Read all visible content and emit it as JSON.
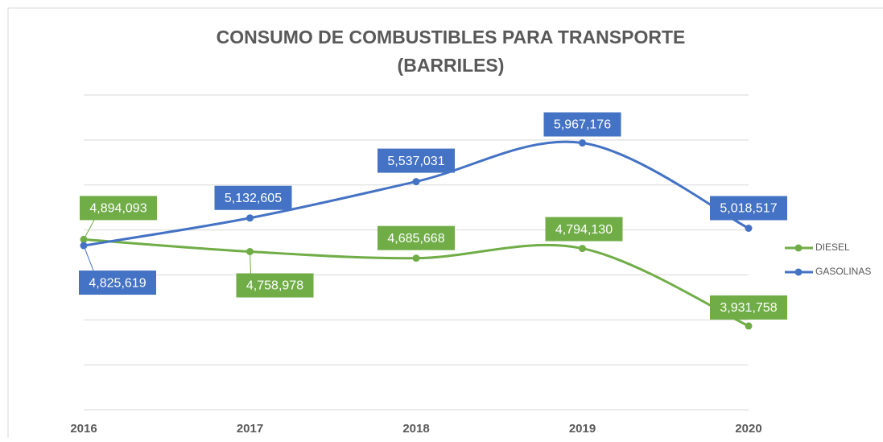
{
  "chart_data": {
    "type": "line",
    "title": "CONSUMO DE COMBUSTIBLES PARA TRANSPORTE",
    "subtitle": "(BARRILES)",
    "categories": [
      "2016",
      "2017",
      "2018",
      "2019",
      "2020"
    ],
    "series": [
      {
        "name": "DIESEL",
        "color": "#70ad47",
        "values": [
          4894093,
          4758978,
          4685668,
          4794130,
          3931758
        ],
        "value_labels": [
          "4,894,093",
          "4,758,978",
          "4,685,668",
          "4,794,130",
          "3,931,758"
        ]
      },
      {
        "name": "GASOLINAS",
        "color": "#4472c4",
        "values": [
          4825619,
          5132605,
          5537031,
          5967176,
          5018517
        ],
        "value_labels": [
          "4,825,619",
          "5,132,605",
          "5,537,031",
          "5,967,176",
          "5,018,517"
        ]
      }
    ],
    "ylim": [
      3000000,
      6500000
    ],
    "yticks": [
      3000000,
      3500000,
      4000000,
      4500000,
      5000000,
      5500000,
      6000000,
      6500000
    ],
    "grid": true,
    "smooth": true,
    "legend": "right"
  }
}
